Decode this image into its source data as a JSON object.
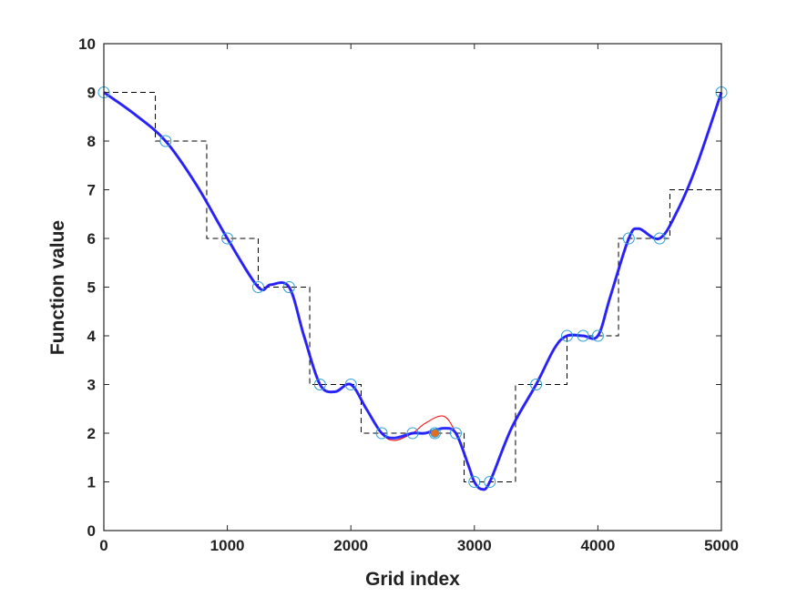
{
  "chart_data": {
    "type": "line",
    "title": "",
    "xlabel": "Grid index",
    "ylabel": "Function value",
    "xlim": [
      0,
      5000
    ],
    "ylim": [
      0,
      10
    ],
    "xticks": [
      0,
      1000,
      2000,
      3000,
      4000,
      5000
    ],
    "yticks": [
      0,
      1,
      2,
      3,
      4,
      5,
      6,
      7,
      8,
      9,
      10
    ],
    "grid": false,
    "legend": "none",
    "series": [
      {
        "style": "step-dashed",
        "color": "#000000",
        "x": [
          0,
          417,
          417,
          833,
          833,
          1250,
          1250,
          1667,
          1667,
          2083,
          2083,
          2500,
          2500,
          2917,
          2917,
          3333,
          3333,
          3750,
          3750,
          4167,
          4167,
          4583,
          4583,
          5000
        ],
        "y": [
          9,
          9,
          8,
          8,
          6,
          6,
          5,
          5,
          3,
          3,
          2,
          2,
          2,
          2,
          1,
          1,
          3,
          3,
          4,
          4,
          6,
          6,
          7,
          7
        ]
      },
      {
        "style": "thin-line",
        "color": "#ff0000",
        "x": [
          0,
          250,
          500,
          750,
          1000,
          1250,
          1350,
          1500,
          1620,
          1750,
          1870,
          2000,
          2125,
          2250,
          2350,
          2500,
          2600,
          2750,
          2850,
          2950,
          3000,
          3060,
          3125,
          3300,
          3500,
          3650,
          3750,
          3880,
          4000,
          4100,
          4250,
          4330,
          4500,
          4650,
          4800,
          5000
        ],
        "y": [
          9,
          8.55,
          8.0,
          7.1,
          6.0,
          5.0,
          5.05,
          5.0,
          4.0,
          3.0,
          2.85,
          3.0,
          2.5,
          2.0,
          1.85,
          2.0,
          2.2,
          2.35,
          2.0,
          1.35,
          1.0,
          0.85,
          1.0,
          2.1,
          3.0,
          3.75,
          4.0,
          4.0,
          4.0,
          4.8,
          6.0,
          6.2,
          6.0,
          6.6,
          7.5,
          9.0
        ]
      },
      {
        "style": "thick-line",
        "color": "#1a1aff",
        "x": [
          0,
          250,
          500,
          750,
          1000,
          1250,
          1350,
          1500,
          1620,
          1750,
          1870,
          2000,
          2125,
          2250,
          2350,
          2500,
          2600,
          2750,
          2850,
          2950,
          3000,
          3060,
          3125,
          3300,
          3500,
          3650,
          3750,
          3880,
          4000,
          4100,
          4250,
          4330,
          4500,
          4650,
          4800,
          5000
        ],
        "y": [
          9,
          8.55,
          8.0,
          7.1,
          6.0,
          5.0,
          5.05,
          5.0,
          4.0,
          3.0,
          2.85,
          3.0,
          2.5,
          2.0,
          1.9,
          2.0,
          2.0,
          2.1,
          2.0,
          1.35,
          1.0,
          0.85,
          1.0,
          2.1,
          3.0,
          3.75,
          4.0,
          4.0,
          4.0,
          4.8,
          6.0,
          6.2,
          6.0,
          6.6,
          7.5,
          9.0
        ]
      },
      {
        "style": "open-circle",
        "color": "#2e9fd6",
        "x": [
          0,
          500,
          1000,
          1250,
          1500,
          1750,
          2000,
          2250,
          2500,
          2680,
          2850,
          3000,
          3125,
          3500,
          3750,
          3880,
          4000,
          4250,
          4500,
          5000
        ],
        "y": [
          9,
          8,
          6,
          5,
          5,
          3,
          3,
          2,
          2,
          2,
          2,
          1,
          1,
          3,
          4,
          4,
          4,
          6,
          6,
          9
        ]
      },
      {
        "style": "filled-circle",
        "color": "#e07020",
        "x": [
          2680
        ],
        "y": [
          2
        ]
      }
    ]
  }
}
